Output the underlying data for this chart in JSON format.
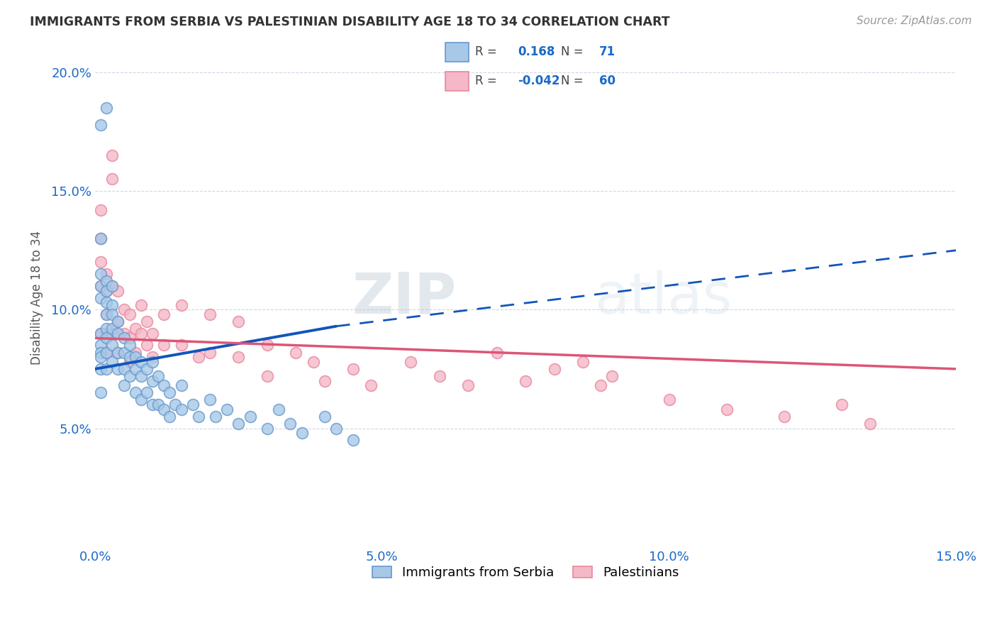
{
  "title": "IMMIGRANTS FROM SERBIA VS PALESTINIAN DISABILITY AGE 18 TO 34 CORRELATION CHART",
  "source": "Source: ZipAtlas.com",
  "ylabel": "Disability Age 18 to 34",
  "xlim": [
    0.0,
    0.15
  ],
  "ylim": [
    0.0,
    0.21
  ],
  "xticks": [
    0.0,
    0.05,
    0.1,
    0.15
  ],
  "xtick_labels": [
    "0.0%",
    "5.0%",
    "10.0%",
    "15.0%"
  ],
  "yticks": [
    0.05,
    0.1,
    0.15,
    0.2
  ],
  "ytick_labels": [
    "5.0%",
    "10.0%",
    "15.0%",
    "20.0%"
  ],
  "serbia_R": 0.168,
  "serbia_N": 71,
  "palestinian_R": -0.042,
  "palestinian_N": 60,
  "serbia_color": "#a8c8e8",
  "serbia_edge": "#6699cc",
  "palestinian_color": "#f4b8c8",
  "palestinian_edge": "#e8879c",
  "serbia_trend_color": "#1155bb",
  "palestinian_trend_color": "#dd5577",
  "legend_r_color": "#1a6ac8",
  "watermark": "ZIPatlas",
  "serbia_x": [
    0.001,
    0.001,
    0.001,
    0.001,
    0.001,
    0.001,
    0.001,
    0.001,
    0.001,
    0.001,
    0.002,
    0.002,
    0.002,
    0.002,
    0.002,
    0.002,
    0.002,
    0.002,
    0.003,
    0.003,
    0.003,
    0.003,
    0.003,
    0.003,
    0.004,
    0.004,
    0.004,
    0.004,
    0.005,
    0.005,
    0.005,
    0.005,
    0.006,
    0.006,
    0.006,
    0.007,
    0.007,
    0.007,
    0.008,
    0.008,
    0.008,
    0.009,
    0.009,
    0.01,
    0.01,
    0.01,
    0.011,
    0.011,
    0.012,
    0.012,
    0.013,
    0.013,
    0.014,
    0.015,
    0.015,
    0.017,
    0.018,
    0.02,
    0.021,
    0.023,
    0.025,
    0.027,
    0.03,
    0.032,
    0.034,
    0.036,
    0.04,
    0.042,
    0.045,
    0.001,
    0.002
  ],
  "serbia_y": [
    0.13,
    0.115,
    0.11,
    0.105,
    0.09,
    0.085,
    0.082,
    0.08,
    0.075,
    0.065,
    0.112,
    0.108,
    0.103,
    0.098,
    0.092,
    0.088,
    0.082,
    0.075,
    0.11,
    0.102,
    0.098,
    0.092,
    0.085,
    0.078,
    0.095,
    0.09,
    0.082,
    0.075,
    0.088,
    0.082,
    0.075,
    0.068,
    0.085,
    0.08,
    0.072,
    0.08,
    0.075,
    0.065,
    0.078,
    0.072,
    0.062,
    0.075,
    0.065,
    0.078,
    0.07,
    0.06,
    0.072,
    0.06,
    0.068,
    0.058,
    0.065,
    0.055,
    0.06,
    0.068,
    0.058,
    0.06,
    0.055,
    0.062,
    0.055,
    0.058,
    0.052,
    0.055,
    0.05,
    0.058,
    0.052,
    0.048,
    0.055,
    0.05,
    0.045,
    0.178,
    0.185
  ],
  "pal_x": [
    0.001,
    0.001,
    0.001,
    0.001,
    0.001,
    0.002,
    0.002,
    0.002,
    0.002,
    0.002,
    0.003,
    0.003,
    0.003,
    0.003,
    0.004,
    0.004,
    0.004,
    0.005,
    0.005,
    0.006,
    0.006,
    0.006,
    0.007,
    0.007,
    0.008,
    0.008,
    0.009,
    0.009,
    0.01,
    0.01,
    0.012,
    0.012,
    0.015,
    0.015,
    0.018,
    0.02,
    0.02,
    0.025,
    0.025,
    0.03,
    0.03,
    0.035,
    0.038,
    0.04,
    0.045,
    0.048,
    0.055,
    0.06,
    0.065,
    0.07,
    0.075,
    0.08,
    0.085,
    0.088,
    0.09,
    0.1,
    0.11,
    0.12,
    0.13,
    0.135
  ],
  "pal_y": [
    0.142,
    0.13,
    0.12,
    0.11,
    0.09,
    0.115,
    0.108,
    0.098,
    0.09,
    0.082,
    0.165,
    0.155,
    0.11,
    0.09,
    0.108,
    0.095,
    0.082,
    0.1,
    0.09,
    0.098,
    0.088,
    0.078,
    0.092,
    0.082,
    0.102,
    0.09,
    0.095,
    0.085,
    0.09,
    0.08,
    0.098,
    0.085,
    0.102,
    0.085,
    0.08,
    0.098,
    0.082,
    0.095,
    0.08,
    0.085,
    0.072,
    0.082,
    0.078,
    0.07,
    0.075,
    0.068,
    0.078,
    0.072,
    0.068,
    0.082,
    0.07,
    0.075,
    0.078,
    0.068,
    0.072,
    0.062,
    0.058,
    0.055,
    0.06,
    0.052
  ],
  "serbia_trend_x0": 0.0,
  "serbia_trend_y0": 0.075,
  "serbia_trend_x1": 0.042,
  "serbia_trend_y1": 0.093,
  "serbia_trend_x2": 0.15,
  "serbia_trend_y2": 0.125,
  "pal_trend_x0": 0.0,
  "pal_trend_y0": 0.088,
  "pal_trend_x1": 0.15,
  "pal_trend_y1": 0.075
}
